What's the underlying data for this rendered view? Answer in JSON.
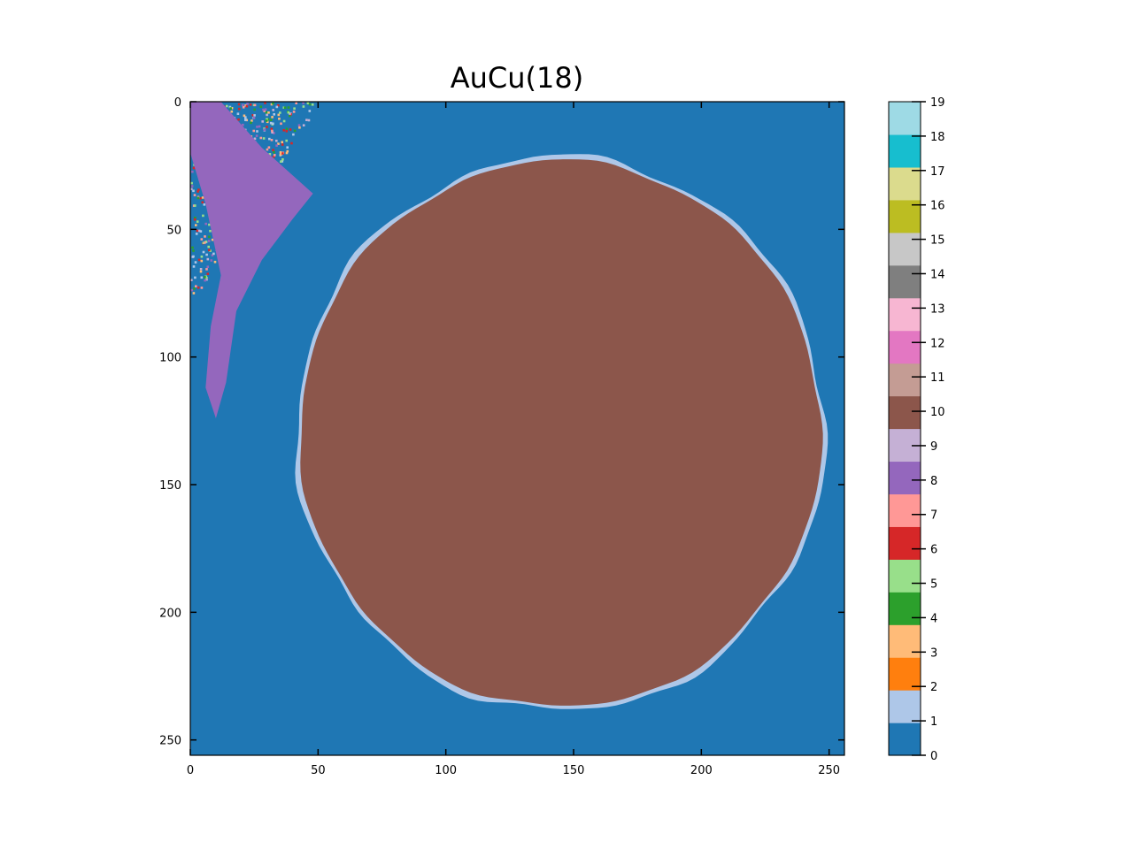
{
  "chart_data": {
    "type": "heatmap",
    "title": "AuCu(18)",
    "xlabel": "",
    "ylabel": "",
    "xlim": [
      0,
      256
    ],
    "ylim": [
      256,
      0
    ],
    "x_ticks": [
      "0",
      "50",
      "100",
      "150",
      "200",
      "250"
    ],
    "x_tick_values": [
      0,
      50,
      100,
      150,
      200,
      250
    ],
    "y_ticks": [
      "0",
      "50",
      "100",
      "150",
      "200",
      "250"
    ],
    "y_tick_values": [
      0,
      50,
      100,
      150,
      200,
      250
    ],
    "colorbar": {
      "range": [
        0,
        19
      ],
      "ticks": [
        "0",
        "1",
        "2",
        "3",
        "4",
        "5",
        "6",
        "7",
        "8",
        "9",
        "10",
        "11",
        "12",
        "13",
        "14",
        "15",
        "16",
        "17",
        "18",
        "19"
      ],
      "colors": [
        "#1f77b4",
        "#aec7e8",
        "#ff7f0e",
        "#ffbb78",
        "#2ca02c",
        "#98df8a",
        "#d62728",
        "#ff9896",
        "#9467bd",
        "#c5b0d5",
        "#8c564b",
        "#c49c94",
        "#e377c2",
        "#f7b6d2",
        "#7f7f7f",
        "#c7c7c7",
        "#bcbd22",
        "#dbdb8d",
        "#17becf",
        "#9edae5"
      ]
    },
    "regions": [
      {
        "label": 0,
        "description": "background"
      },
      {
        "label": 10,
        "center": [
          145,
          130
        ],
        "radius_x": 102,
        "radius_y": 107
      },
      {
        "label": 8,
        "description": "diagonal band upper-left"
      },
      {
        "label": 1,
        "description": "thin rim around main grain"
      }
    ],
    "grid": false
  }
}
